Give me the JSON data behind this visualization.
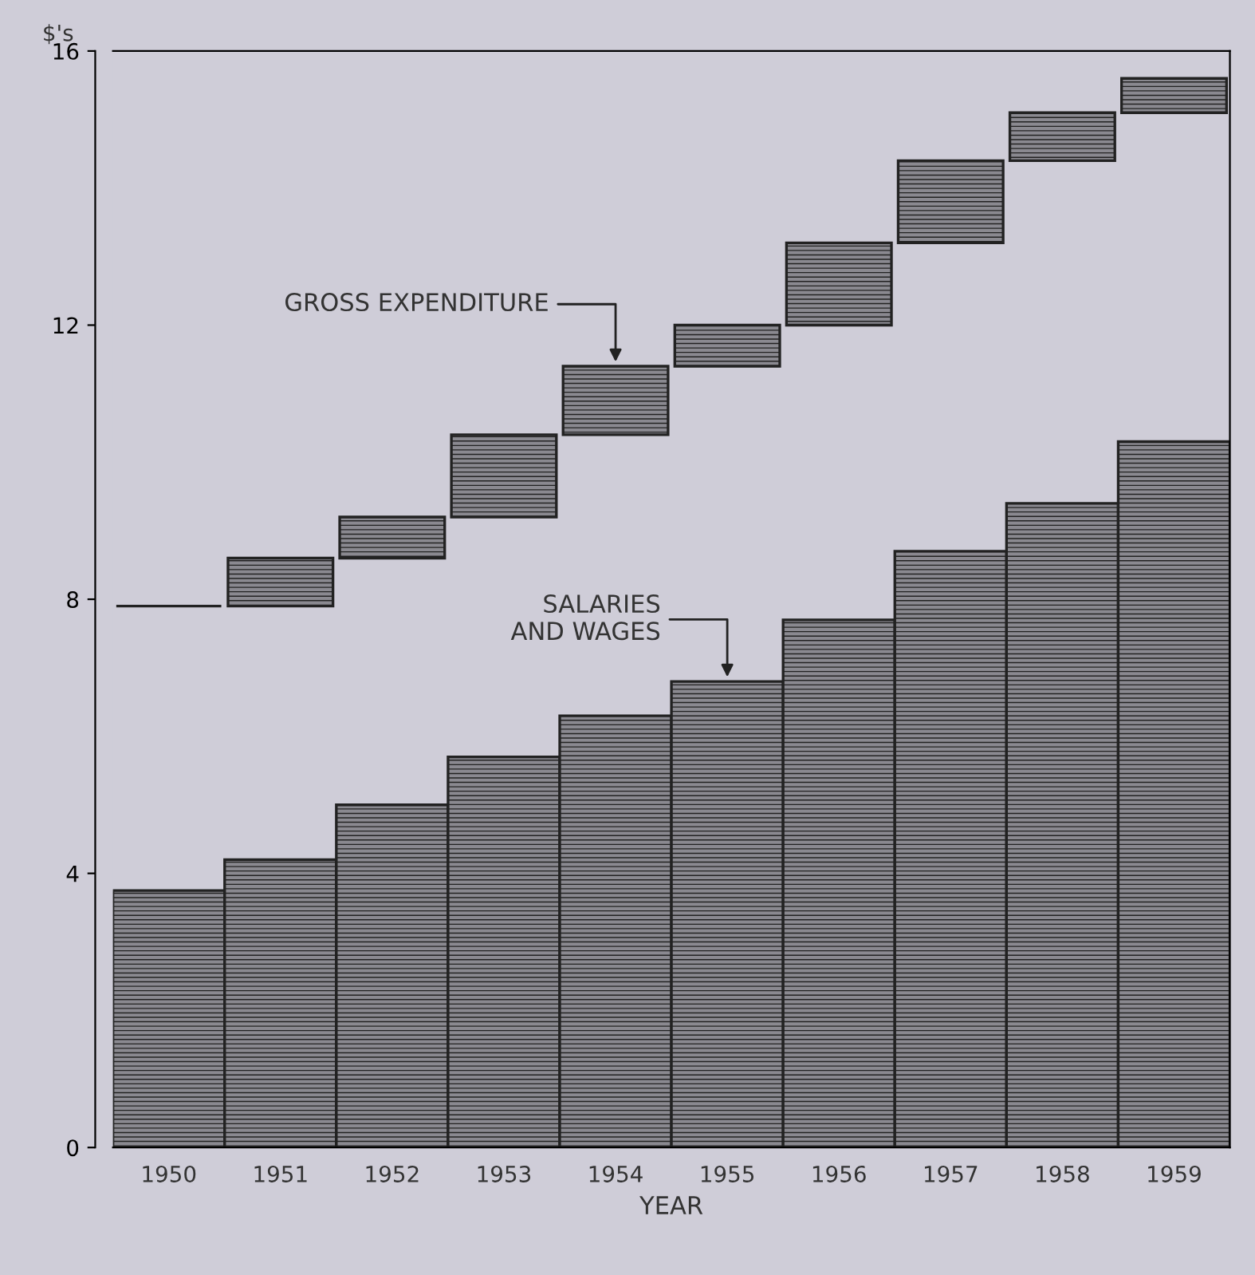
{
  "chart_data": {
    "type": "bar",
    "ylabel": "$'s",
    "xlabel": "YEAR",
    "categories": [
      "1950",
      "1951",
      "1952",
      "1953",
      "1954",
      "1955",
      "1956",
      "1957",
      "1958",
      "1959"
    ],
    "series": [
      {
        "color": "#222222",
        "values": [
          3.75,
          4.2,
          5.0,
          5.7,
          6.3,
          6.8,
          7.7,
          8.7,
          9.4,
          10.3
        ]
      },
      {
        "color": "#222222",
        "base": [
          7.9,
          7.9,
          8.6,
          9.2,
          10.4,
          11.4,
          12.0,
          13.2,
          14.4,
          15.1
        ],
        "values": [
          0,
          0.7,
          0.6,
          1.2,
          1.0,
          0.6,
          1.2,
          1.2,
          0.7,
          0.5
        ]
      }
    ],
    "ylim": [
      0,
      16
    ],
    "yticks": [
      0,
      4,
      8,
      12,
      16
    ],
    "annotations": [
      {
        "text": "GROSS EXPENDITURE",
        "x": "1954",
        "y": 11.4
      },
      {
        "text": "SALARIES\nAND WAGES",
        "x": "1955",
        "y": 6.8
      }
    ],
    "grid": false
  }
}
